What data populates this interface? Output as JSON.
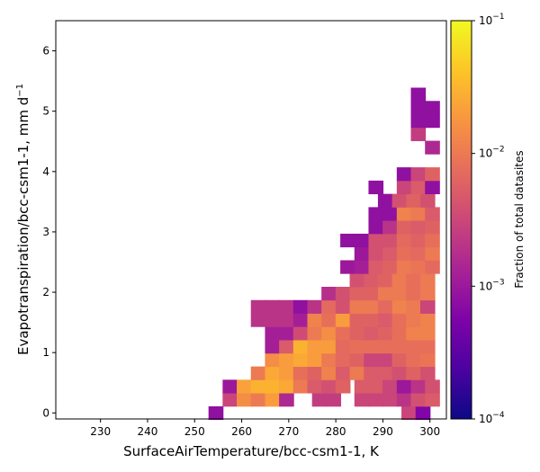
{
  "chart_data": {
    "type": "heatmap",
    "xlabel": "SurfaceAirTemperature/bcc-csm1-1,  K",
    "ylabel": "Evapotranspiration/bcc-csm1-1,  mm d",
    "ylabel_sup": "−1",
    "xlim": [
      220.5,
      303.5
    ],
    "ylim": [
      -0.1,
      6.5
    ],
    "x_ticks": [
      230,
      240,
      250,
      260,
      270,
      280,
      290,
      300
    ],
    "y_ticks": [
      0,
      1,
      2,
      3,
      4,
      5,
      6
    ],
    "cell_width": 3.1,
    "cell_height": 0.22,
    "colorbar": {
      "label": "Fraction of total datasites",
      "scale": "log",
      "min": 0.0001,
      "max": 0.1,
      "colormap": "plasma",
      "ticks": [
        {
          "value": 0.1,
          "base": "10",
          "exp": "−1"
        },
        {
          "value": 0.01,
          "base": "10",
          "exp": "−2"
        },
        {
          "value": 0.001,
          "base": "10",
          "exp": "−3"
        },
        {
          "value": 0.0001,
          "base": "10",
          "exp": "−4"
        }
      ]
    },
    "rows": [
      {
        "y": 0.0,
        "cells": [
          [
            254.5,
            0.0008
          ],
          [
            295.5,
            0.003
          ],
          [
            298.5,
            0.0006
          ]
        ]
      },
      {
        "y": 0.22,
        "cells": [
          [
            257.5,
            0.003
          ],
          [
            260.5,
            0.015
          ],
          [
            263.5,
            0.01
          ],
          [
            266.5,
            0.02
          ],
          [
            269.5,
            0.0015
          ],
          [
            276.5,
            0.0025
          ],
          [
            279.5,
            0.0025
          ],
          [
            285.5,
            0.003
          ],
          [
            288.5,
            0.003
          ],
          [
            291.5,
            0.003
          ],
          [
            294.5,
            0.002
          ],
          [
            297.5,
            0.004
          ],
          [
            300.5,
            0.005
          ]
        ]
      },
      {
        "y": 0.44,
        "cells": [
          [
            257.5,
            0.001
          ],
          [
            260.5,
            0.022
          ],
          [
            263.5,
            0.03
          ],
          [
            266.5,
            0.03
          ],
          [
            269.5,
            0.025
          ],
          [
            272.5,
            0.01
          ],
          [
            275.5,
            0.005
          ],
          [
            278.5,
            0.004
          ],
          [
            281.5,
            0.006
          ],
          [
            285.5,
            0.005
          ],
          [
            288.5,
            0.005
          ],
          [
            291.5,
            0.003
          ],
          [
            294.5,
            0.001
          ],
          [
            297.5,
            0.002
          ],
          [
            300.5,
            0.004
          ]
        ]
      },
      {
        "y": 0.66,
        "cells": [
          [
            263.5,
            0.01
          ],
          [
            266.5,
            0.025
          ],
          [
            269.5,
            0.02
          ],
          [
            272.5,
            0.008
          ],
          [
            275.5,
            0.006
          ],
          [
            278.5,
            0.012
          ],
          [
            281.5,
            0.005
          ],
          [
            284.5,
            0.01
          ],
          [
            287.5,
            0.005
          ],
          [
            290.5,
            0.005
          ],
          [
            293.5,
            0.004
          ],
          [
            296.5,
            0.006
          ],
          [
            299.5,
            0.004
          ]
        ]
      },
      {
        "y": 0.88,
        "cells": [
          [
            266.5,
            0.015
          ],
          [
            269.5,
            0.02
          ],
          [
            272.5,
            0.025
          ],
          [
            275.5,
            0.02
          ],
          [
            278.5,
            0.01
          ],
          [
            281.5,
            0.007
          ],
          [
            284.5,
            0.006
          ],
          [
            287.5,
            0.003
          ],
          [
            290.5,
            0.003
          ],
          [
            293.5,
            0.006
          ],
          [
            296.5,
            0.008
          ],
          [
            299.5,
            0.009
          ]
        ]
      },
      {
        "y": 1.1,
        "cells": [
          [
            266.5,
            0.0012
          ],
          [
            269.5,
            0.005
          ],
          [
            272.5,
            0.03
          ],
          [
            275.5,
            0.02
          ],
          [
            278.5,
            0.02
          ],
          [
            281.5,
            0.007
          ],
          [
            284.5,
            0.008
          ],
          [
            287.5,
            0.008
          ],
          [
            290.5,
            0.008
          ],
          [
            293.5,
            0.008
          ],
          [
            296.5,
            0.008
          ],
          [
            299.5,
            0.008
          ]
        ]
      },
      {
        "y": 1.32,
        "cells": [
          [
            266.5,
            0.0012
          ],
          [
            269.5,
            0.0012
          ],
          [
            272.5,
            0.0035
          ],
          [
            275.5,
            0.01
          ],
          [
            278.5,
            0.015
          ],
          [
            281.5,
            0.008
          ],
          [
            284.5,
            0.006
          ],
          [
            287.5,
            0.005
          ],
          [
            290.5,
            0.006
          ],
          [
            293.5,
            0.008
          ],
          [
            296.5,
            0.012
          ],
          [
            299.5,
            0.012
          ]
        ]
      },
      {
        "y": 1.54,
        "cells": [
          [
            263.5,
            0.002
          ],
          [
            266.5,
            0.002
          ],
          [
            269.5,
            0.002
          ],
          [
            272.5,
            0.0012
          ],
          [
            275.5,
            0.012
          ],
          [
            278.5,
            0.008
          ],
          [
            281.5,
            0.02
          ],
          [
            284.5,
            0.006
          ],
          [
            287.5,
            0.006
          ],
          [
            290.5,
            0.005
          ],
          [
            293.5,
            0.008
          ],
          [
            296.5,
            0.01
          ],
          [
            299.5,
            0.012
          ]
        ]
      },
      {
        "y": 1.76,
        "cells": [
          [
            263.5,
            0.002
          ],
          [
            266.5,
            0.002
          ],
          [
            269.5,
            0.002
          ],
          [
            272.5,
            0.0008
          ],
          [
            275.5,
            0.002
          ],
          [
            278.5,
            0.007
          ],
          [
            281.5,
            0.004
          ],
          [
            284.5,
            0.01
          ],
          [
            287.5,
            0.01
          ],
          [
            290.5,
            0.007
          ],
          [
            293.5,
            0.012
          ],
          [
            296.5,
            0.01
          ],
          [
            299.5,
            0.003
          ]
        ]
      },
      {
        "y": 1.98,
        "cells": [
          [
            278.5,
            0.0018
          ],
          [
            281.5,
            0.004
          ],
          [
            284.5,
            0.006
          ],
          [
            287.5,
            0.006
          ],
          [
            290.5,
            0.01
          ],
          [
            293.5,
            0.01
          ],
          [
            296.5,
            0.008
          ],
          [
            299.5,
            0.01
          ]
        ]
      },
      {
        "y": 2.2,
        "cells": [
          [
            284.5,
            0.004
          ],
          [
            287.5,
            0.005
          ],
          [
            290.5,
            0.006
          ],
          [
            293.5,
            0.01
          ],
          [
            296.5,
            0.008
          ],
          [
            299.5,
            0.01
          ]
        ]
      },
      {
        "y": 2.42,
        "cells": [
          [
            282.5,
            0.001
          ],
          [
            285.5,
            0.0012
          ],
          [
            288.5,
            0.005
          ],
          [
            291.5,
            0.006
          ],
          [
            294.5,
            0.01
          ],
          [
            297.5,
            0.009
          ],
          [
            300.5,
            0.007
          ]
        ]
      },
      {
        "y": 2.64,
        "cells": [
          [
            285.5,
            0.001
          ],
          [
            288.5,
            0.004
          ],
          [
            291.5,
            0.005
          ],
          [
            294.5,
            0.008
          ],
          [
            297.5,
            0.007
          ],
          [
            300.5,
            0.01
          ]
        ]
      },
      {
        "y": 2.86,
        "cells": [
          [
            282.5,
            0.0008
          ],
          [
            285.5,
            0.0008
          ],
          [
            288.5,
            0.004
          ],
          [
            291.5,
            0.004
          ],
          [
            294.5,
            0.007
          ],
          [
            297.5,
            0.006
          ],
          [
            300.5,
            0.008
          ]
        ]
      },
      {
        "y": 3.08,
        "cells": [
          [
            288.5,
            0.0008
          ],
          [
            291.5,
            0.002
          ],
          [
            294.5,
            0.006
          ],
          [
            297.5,
            0.005
          ],
          [
            300.5,
            0.006
          ]
        ]
      },
      {
        "y": 3.3,
        "cells": [
          [
            288.5,
            0.0008
          ],
          [
            291.5,
            0.0008
          ],
          [
            294.5,
            0.012
          ],
          [
            297.5,
            0.01
          ],
          [
            300.5,
            0.005
          ]
        ]
      },
      {
        "y": 3.52,
        "cells": [
          [
            290.5,
            0.0008
          ],
          [
            293.5,
            0.004
          ],
          [
            296.5,
            0.006
          ],
          [
            299.5,
            0.004
          ]
        ]
      },
      {
        "y": 3.74,
        "cells": [
          [
            288.5,
            0.0008
          ],
          [
            294.5,
            0.003
          ],
          [
            297.5,
            0.005
          ],
          [
            300.5,
            0.0008
          ]
        ]
      },
      {
        "y": 3.96,
        "cells": [
          [
            294.5,
            0.0008
          ],
          [
            297.5,
            0.003
          ],
          [
            300.5,
            0.006
          ]
        ]
      },
      {
        "y": 4.4,
        "cells": [
          [
            300.5,
            0.0015
          ]
        ]
      },
      {
        "y": 4.62,
        "cells": [
          [
            297.5,
            0.0025
          ]
        ]
      },
      {
        "y": 4.84,
        "cells": [
          [
            297.5,
            0.0008
          ],
          [
            300.5,
            0.0008
          ]
        ]
      },
      {
        "y": 5.06,
        "cells": [
          [
            297.5,
            0.0008
          ],
          [
            300.5,
            0.0008
          ]
        ]
      },
      {
        "y": 5.28,
        "cells": [
          [
            297.5,
            0.0008
          ]
        ]
      }
    ]
  }
}
